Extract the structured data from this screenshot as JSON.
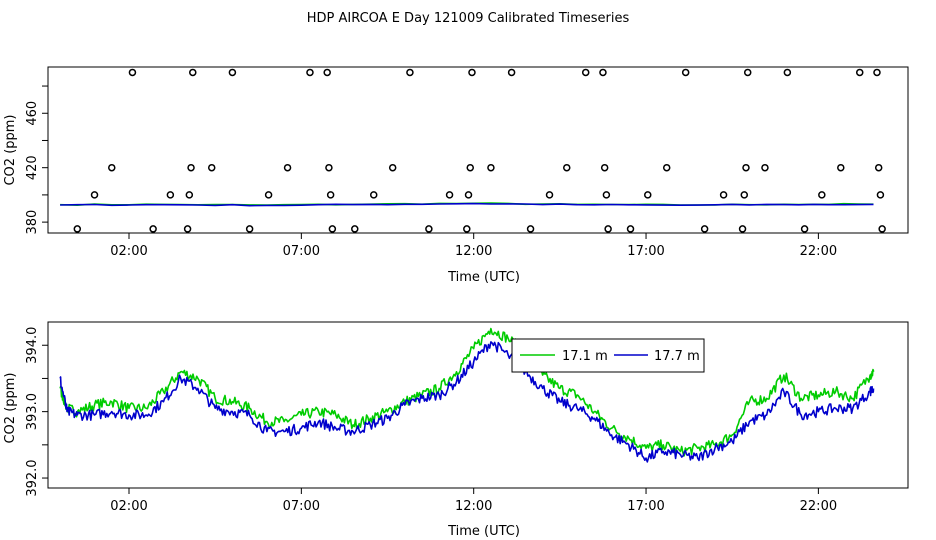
{
  "page_title": "HDP AIRCOA E  Day 121009  Calibrated Timeseries",
  "colors": {
    "green": "#00cc00",
    "blue": "#0000cc",
    "axis": "#000000"
  },
  "chart_data": [
    {
      "id": "upper",
      "type": "scatter",
      "xlabel": "Time (UTC)",
      "ylabel": "CO2 (ppm)",
      "xlim": [
        -0.35,
        24.6
      ],
      "ylim": [
        372,
        494
      ],
      "x_ticks": [
        2,
        7,
        12,
        17,
        22
      ],
      "x_tick_labels": [
        "02:00",
        "07:00",
        "12:00",
        "17:00",
        "22:00"
      ],
      "y_ticks": [
        380,
        420,
        460
      ],
      "y_minor_ticks": [
        380,
        400,
        420,
        440,
        460,
        480
      ],
      "y_tick_labels": [
        "380",
        "420",
        "460"
      ],
      "points": [
        [
          0.5,
          375
        ],
        [
          1.0,
          400
        ],
        [
          1.5,
          420
        ],
        [
          2.1,
          490
        ],
        [
          2.7,
          375
        ],
        [
          3.2,
          400
        ],
        [
          3.7,
          375
        ],
        [
          3.75,
          400
        ],
        [
          3.8,
          420
        ],
        [
          3.85,
          490
        ],
        [
          4.4,
          420
        ],
        [
          5.0,
          490
        ],
        [
          5.5,
          375
        ],
        [
          6.05,
          400
        ],
        [
          6.6,
          420
        ],
        [
          7.25,
          490
        ],
        [
          7.75,
          490
        ],
        [
          7.8,
          420
        ],
        [
          7.85,
          400
        ],
        [
          7.9,
          375
        ],
        [
          8.55,
          375
        ],
        [
          9.1,
          400
        ],
        [
          9.65,
          420
        ],
        [
          10.15,
          490
        ],
        [
          10.7,
          375
        ],
        [
          11.3,
          400
        ],
        [
          11.8,
          375
        ],
        [
          11.85,
          400
        ],
        [
          11.9,
          420
        ],
        [
          11.95,
          490
        ],
        [
          12.5,
          420
        ],
        [
          13.1,
          490
        ],
        [
          13.65,
          375
        ],
        [
          14.2,
          400
        ],
        [
          14.7,
          420
        ],
        [
          15.25,
          490
        ],
        [
          15.75,
          490
        ],
        [
          15.8,
          420
        ],
        [
          15.85,
          400
        ],
        [
          15.9,
          375
        ],
        [
          16.55,
          375
        ],
        [
          17.05,
          400
        ],
        [
          17.6,
          420
        ],
        [
          18.15,
          490
        ],
        [
          18.7,
          375
        ],
        [
          19.25,
          400
        ],
        [
          19.8,
          375
        ],
        [
          19.85,
          400
        ],
        [
          19.9,
          420
        ],
        [
          19.95,
          490
        ],
        [
          20.45,
          420
        ],
        [
          21.1,
          490
        ],
        [
          21.6,
          375
        ],
        [
          22.1,
          400
        ],
        [
          22.65,
          420
        ],
        [
          23.2,
          490
        ],
        [
          23.7,
          490
        ],
        [
          23.75,
          420
        ],
        [
          23.8,
          400
        ],
        [
          23.85,
          375
        ]
      ],
      "series": [
        {
          "color": "#00cc00",
          "x": [
            0,
            3,
            6,
            9,
            12,
            15,
            18,
            21,
            23.6
          ],
          "y": [
            392.8,
            393.0,
            392.5,
            393.2,
            393.8,
            393.0,
            392.6,
            393.1,
            393.2
          ]
        },
        {
          "color": "#0000cc",
          "x": [
            0,
            3,
            6,
            9,
            12,
            15,
            18,
            21,
            23.6
          ],
          "y": [
            392.6,
            392.8,
            392.3,
            393.0,
            393.6,
            392.8,
            392.4,
            392.9,
            393.0
          ]
        }
      ]
    },
    {
      "id": "lower",
      "type": "line",
      "xlabel": "Time (UTC)",
      "ylabel": "CO2 (ppm)",
      "xlim": [
        -0.35,
        24.6
      ],
      "ylim": [
        391.85,
        394.35
      ],
      "x_ticks": [
        2,
        7,
        12,
        17,
        22
      ],
      "x_tick_labels": [
        "02:00",
        "07:00",
        "12:00",
        "17:00",
        "22:00"
      ],
      "y_ticks": [
        392.0,
        393.0,
        394.0
      ],
      "y_minor_ticks": [
        392.0,
        392.5,
        393.0,
        393.5,
        394.0
      ],
      "y_tick_labels": [
        "392.0",
        "393.0",
        "394.0"
      ],
      "legend": {
        "position": "top-center",
        "entries": [
          {
            "label": "17.1 m",
            "color": "#00cc00"
          },
          {
            "label": "17.7 m",
            "color": "#0000cc"
          }
        ]
      },
      "series": [
        {
          "name": "17.1 m",
          "color": "#00cc00",
          "x": [
            0,
            0.2,
            0.5,
            1.0,
            1.5,
            2.0,
            2.5,
            3.0,
            3.5,
            4.0,
            4.5,
            5.0,
            5.5,
            6.0,
            6.5,
            7.0,
            7.5,
            8.0,
            8.5,
            9.0,
            9.5,
            10.0,
            10.5,
            11.0,
            11.5,
            12.0,
            12.5,
            13.0,
            13.5,
            14.0,
            14.5,
            15.0,
            15.5,
            16.0,
            16.5,
            17.0,
            17.5,
            18.0,
            18.5,
            19.0,
            19.5,
            20.0,
            20.5,
            21.0,
            21.5,
            22.0,
            22.5,
            23.0,
            23.5,
            23.6
          ],
          "y": [
            393.35,
            393.05,
            393.0,
            393.1,
            393.15,
            393.05,
            393.05,
            393.3,
            393.6,
            393.5,
            393.2,
            393.15,
            393.05,
            392.85,
            392.85,
            392.95,
            393.0,
            392.95,
            392.8,
            392.9,
            393.0,
            393.15,
            393.25,
            393.35,
            393.6,
            393.95,
            394.25,
            394.1,
            393.9,
            393.55,
            393.35,
            393.25,
            393.0,
            392.75,
            392.6,
            392.45,
            392.5,
            392.4,
            392.45,
            392.5,
            392.65,
            393.15,
            393.2,
            393.55,
            393.2,
            393.25,
            393.3,
            393.2,
            393.55,
            393.6
          ]
        },
        {
          "name": "17.7 m",
          "color": "#0000cc",
          "x": [
            0,
            0.2,
            0.5,
            1.0,
            1.5,
            2.0,
            2.5,
            3.0,
            3.5,
            4.0,
            4.5,
            5.0,
            5.5,
            6.0,
            6.5,
            7.0,
            7.5,
            8.0,
            8.5,
            9.0,
            9.5,
            10.0,
            10.5,
            11.0,
            11.5,
            12.0,
            12.5,
            13.0,
            13.5,
            14.0,
            14.5,
            15.0,
            15.5,
            16.0,
            16.5,
            17.0,
            17.5,
            18.0,
            18.5,
            19.0,
            19.5,
            20.0,
            20.5,
            21.0,
            21.5,
            22.0,
            22.5,
            23.0,
            23.5,
            23.6
          ],
          "y": [
            393.5,
            393.0,
            392.95,
            392.95,
            393.0,
            392.95,
            392.95,
            393.15,
            393.5,
            393.35,
            393.05,
            393.0,
            392.95,
            392.7,
            392.7,
            392.75,
            392.85,
            392.75,
            392.7,
            392.8,
            392.9,
            393.1,
            393.2,
            393.25,
            393.45,
            393.75,
            394.05,
            393.85,
            393.6,
            393.35,
            393.15,
            393.05,
            392.9,
            392.65,
            392.5,
            392.3,
            392.4,
            392.35,
            392.3,
            392.45,
            392.55,
            392.85,
            392.95,
            393.3,
            392.95,
            393.0,
            393.05,
            393.05,
            393.3,
            393.35
          ]
        }
      ]
    }
  ]
}
